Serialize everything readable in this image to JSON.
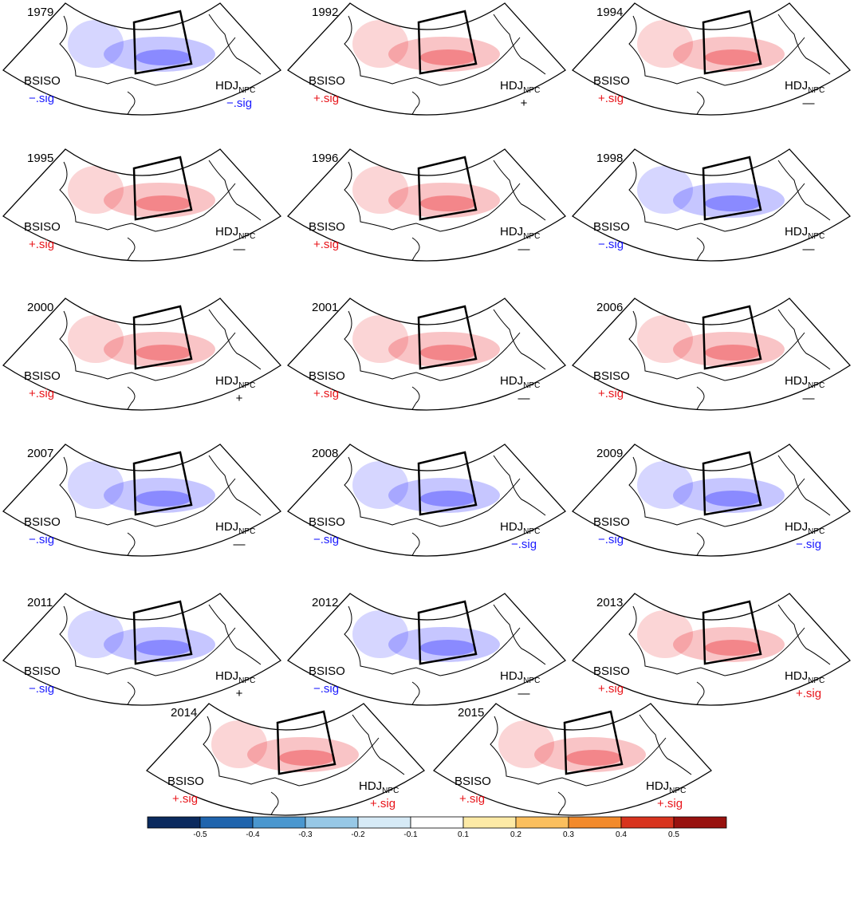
{
  "panels": [
    {
      "year": "1979",
      "bsiso": {
        "label": "BSISO",
        "sign": "−.sig",
        "color": "#1a1aff"
      },
      "hdj": {
        "label": "HDJ",
        "sub": "NPC",
        "sign": "−.sig",
        "color": "#1a1aff"
      }
    },
    {
      "year": "1992",
      "bsiso": {
        "label": "BSISO",
        "sign": "+.sig",
        "color": "#e8141a"
      },
      "hdj": {
        "label": "HDJ",
        "sub": "NPC",
        "sign": "+",
        "color": "#000000"
      }
    },
    {
      "year": "1994",
      "bsiso": {
        "label": "BSISO",
        "sign": "+.sig",
        "color": "#e8141a"
      },
      "hdj": {
        "label": "HDJ",
        "sub": "NPC",
        "sign": "—",
        "color": "#000000"
      }
    },
    {
      "year": "1995",
      "bsiso": {
        "label": "BSISO",
        "sign": "+.sig",
        "color": "#e8141a"
      },
      "hdj": {
        "label": "HDJ",
        "sub": "NPC",
        "sign": "—",
        "color": "#000000"
      }
    },
    {
      "year": "1996",
      "bsiso": {
        "label": "BSISO",
        "sign": "+.sig",
        "color": "#e8141a"
      },
      "hdj": {
        "label": "HDJ",
        "sub": "NPC",
        "sign": "—",
        "color": "#000000"
      }
    },
    {
      "year": "1998",
      "bsiso": {
        "label": "BSISO",
        "sign": "−.sig",
        "color": "#1a1aff"
      },
      "hdj": {
        "label": "HDJ",
        "sub": "NPC",
        "sign": "—",
        "color": "#000000"
      }
    },
    {
      "year": "2000",
      "bsiso": {
        "label": "BSISO",
        "sign": "+.sig",
        "color": "#e8141a"
      },
      "hdj": {
        "label": "HDJ",
        "sub": "NPC",
        "sign": "+",
        "color": "#000000"
      }
    },
    {
      "year": "2001",
      "bsiso": {
        "label": "BSISO",
        "sign": "+.sig",
        "color": "#e8141a"
      },
      "hdj": {
        "label": "HDJ",
        "sub": "NPC",
        "sign": "—",
        "color": "#000000"
      }
    },
    {
      "year": "2006",
      "bsiso": {
        "label": "BSISO",
        "sign": "+.sig",
        "color": "#e8141a"
      },
      "hdj": {
        "label": "HDJ",
        "sub": "NPC",
        "sign": "—",
        "color": "#000000"
      }
    },
    {
      "year": "2007",
      "bsiso": {
        "label": "BSISO",
        "sign": "−.sig",
        "color": "#1a1aff"
      },
      "hdj": {
        "label": "HDJ",
        "sub": "NPC",
        "sign": "—",
        "color": "#000000"
      }
    },
    {
      "year": "2008",
      "bsiso": {
        "label": "BSISO",
        "sign": "−.sig",
        "color": "#1a1aff"
      },
      "hdj": {
        "label": "HDJ",
        "sub": "NPC",
        "sign": "−.sig",
        "color": "#1a1aff"
      }
    },
    {
      "year": "2009",
      "bsiso": {
        "label": "BSISO",
        "sign": "−.sig",
        "color": "#1a1aff"
      },
      "hdj": {
        "label": "HDJ",
        "sub": "NPC",
        "sign": "−.sig",
        "color": "#1a1aff"
      }
    },
    {
      "year": "2011",
      "bsiso": {
        "label": "BSISO",
        "sign": "−.sig",
        "color": "#1a1aff"
      },
      "hdj": {
        "label": "HDJ",
        "sub": "NPC",
        "sign": "+",
        "color": "#000000"
      }
    },
    {
      "year": "2012",
      "bsiso": {
        "label": "BSISO",
        "sign": "−.sig",
        "color": "#1a1aff"
      },
      "hdj": {
        "label": "HDJ",
        "sub": "NPC",
        "sign": "—",
        "color": "#000000"
      }
    },
    {
      "year": "2013",
      "bsiso": {
        "label": "BSISO",
        "sign": "+.sig",
        "color": "#e8141a"
      },
      "hdj": {
        "label": "HDJ",
        "sub": "NPC",
        "sign": "+.sig",
        "color": "#e8141a"
      }
    },
    {
      "year": "2014",
      "bsiso": {
        "label": "BSISO",
        "sign": "+.sig",
        "color": "#e8141a"
      },
      "hdj": {
        "label": "HDJ",
        "sub": "NPC",
        "sign": "+.sig",
        "color": "#e8141a"
      }
    },
    {
      "year": "2015",
      "bsiso": {
        "label": "BSISO",
        "sign": "+.sig",
        "color": "#e8141a"
      },
      "hdj": {
        "label": "HDJ",
        "sub": "NPC",
        "sign": "+.sig",
        "color": "#e8141a"
      }
    }
  ],
  "colorbar": {
    "colors": [
      "#0b2a5e",
      "#1f64ad",
      "#4a97cf",
      "#97c8e6",
      "#d6eaf6",
      "#ffffff",
      "#fdeaa6",
      "#fbbf5e",
      "#f28a2b",
      "#d8341e",
      "#98120f"
    ],
    "ticks": [
      "-0.5",
      "-0.4",
      "-0.3",
      "-0.2",
      "-0.1",
      "0.1",
      "0.2",
      "0.3",
      "0.4",
      "0.5"
    ]
  }
}
